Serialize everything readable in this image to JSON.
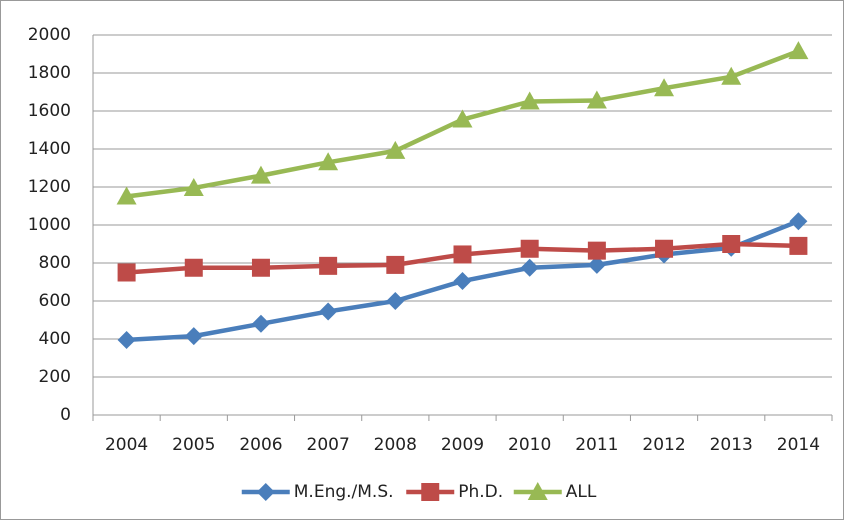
{
  "chart_data": {
    "type": "line",
    "categories": [
      "2004",
      "2005",
      "2006",
      "2007",
      "2008",
      "2009",
      "2010",
      "2011",
      "2012",
      "2013",
      "2014"
    ],
    "series": [
      {
        "name": "M.Eng./M.S.",
        "color": "#4a7ebb",
        "marker": "diamond",
        "values": [
          395,
          415,
          480,
          545,
          600,
          705,
          775,
          790,
          845,
          880,
          1020
        ]
      },
      {
        "name": "Ph.D.",
        "color": "#be4b48",
        "marker": "square",
        "values": [
          750,
          775,
          775,
          785,
          790,
          845,
          875,
          865,
          875,
          900,
          890
        ]
      },
      {
        "name": "ALL",
        "color": "#98b954",
        "marker": "triangle",
        "values": [
          1150,
          1195,
          1260,
          1330,
          1390,
          1555,
          1650,
          1655,
          1720,
          1780,
          1915
        ]
      }
    ],
    "ylim": [
      0,
      2000
    ],
    "yticks": [
      0,
      200,
      400,
      600,
      800,
      1000,
      1200,
      1400,
      1600,
      1800,
      2000
    ],
    "grid": true,
    "legend": "bottom"
  }
}
